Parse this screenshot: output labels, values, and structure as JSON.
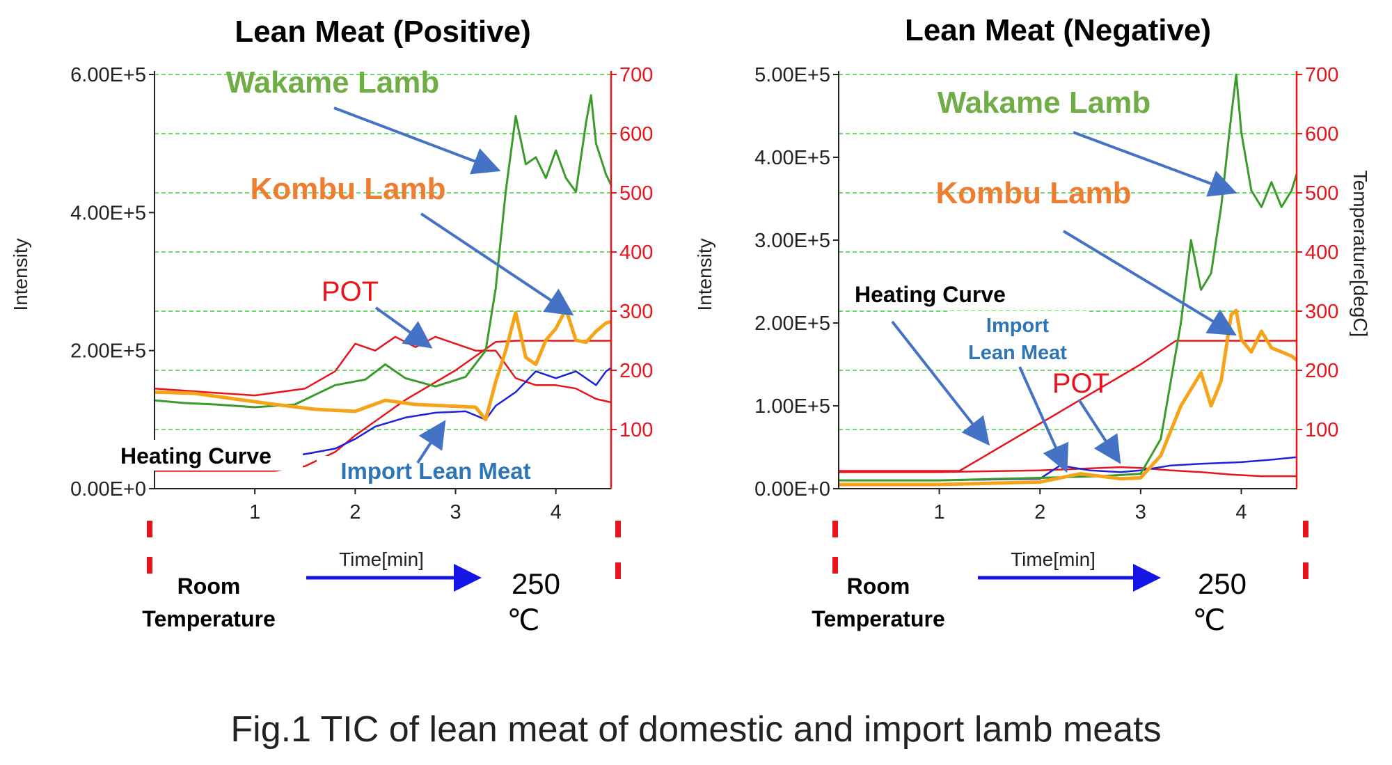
{
  "caption": "Fig.1 TIC of lean meat of domestic and import lamb meats",
  "colors": {
    "wakame": "#3a9b2a",
    "kombu": "#f5a41a",
    "import": "#1c22d8",
    "pot": "#e8141c",
    "heating": "#e8141c",
    "grid": "#3cd23c",
    "arrow": "#4472c4",
    "label_wakame": "#70ad47",
    "label_kombu": "#ed7d31",
    "label_import": "#2e75b6",
    "label_pot": "#e8141c",
    "time_arrow": "#1414e6"
  },
  "chart_data": [
    {
      "type": "line",
      "title": "Lean Meat (Positive)",
      "xlabel": "Time[min]",
      "ylabel": "Intensity",
      "y2label": "",
      "xlim": [
        0,
        4.55
      ],
      "ylim": [
        0,
        600000
      ],
      "y2lim": [
        0,
        700
      ],
      "x_ticks": [
        "1",
        "2",
        "3",
        "4"
      ],
      "y_ticks": [
        "0.00E+0",
        "2.00E+5",
        "4.00E+5",
        "6.00E+5"
      ],
      "y2_ticks": [
        "100",
        "200",
        "300",
        "400",
        "500",
        "600",
        "700"
      ],
      "grid": true,
      "labels": {
        "wakame": "Wakame Lamb",
        "kombu": "Kombu Lamb",
        "pot": "POT",
        "heating": "Heating Curve",
        "import": "Import Lean Meat"
      },
      "footer": {
        "room": [
          "Room",
          "Temperature"
        ],
        "end": [
          "250",
          "℃"
        ]
      },
      "series": [
        {
          "key": "wakame",
          "name": "Wakame Lamb",
          "axis": "left",
          "x": [
            0,
            0.3,
            0.6,
            1.0,
            1.4,
            1.8,
            2.1,
            2.3,
            2.5,
            2.8,
            3.1,
            3.3,
            3.4,
            3.5,
            3.6,
            3.7,
            3.8,
            3.9,
            4.0,
            4.1,
            4.2,
            4.3,
            4.35,
            4.4,
            4.5,
            4.55
          ],
          "y": [
            128000,
            124000,
            122000,
            118000,
            122000,
            150000,
            158000,
            180000,
            160000,
            148000,
            162000,
            200000,
            290000,
            430000,
            540000,
            470000,
            480000,
            450000,
            490000,
            450000,
            430000,
            530000,
            570000,
            500000,
            455000,
            440000
          ]
        },
        {
          "key": "kombu",
          "name": "Kombu Lamb",
          "axis": "left",
          "x": [
            0,
            0.4,
            0.8,
            1.2,
            1.6,
            2.0,
            2.3,
            2.6,
            2.9,
            3.2,
            3.3,
            3.4,
            3.5,
            3.6,
            3.7,
            3.8,
            3.9,
            4.0,
            4.1,
            4.2,
            4.3,
            4.4,
            4.5,
            4.55
          ],
          "y": [
            140000,
            138000,
            130000,
            122000,
            115000,
            112000,
            128000,
            122000,
            120000,
            118000,
            100000,
            155000,
            200000,
            255000,
            190000,
            180000,
            215000,
            232000,
            260000,
            215000,
            212000,
            228000,
            240000,
            242000
          ]
        },
        {
          "key": "import",
          "name": "Import Lean Meat",
          "axis": "left",
          "x": [
            0,
            0.6,
            1.0,
            1.5,
            1.8,
            2.0,
            2.2,
            2.5,
            2.8,
            3.1,
            3.3,
            3.4,
            3.6,
            3.8,
            4.0,
            4.2,
            4.4,
            4.5,
            4.55
          ],
          "y": [
            40000,
            42000,
            43000,
            50000,
            58000,
            72000,
            90000,
            103000,
            110000,
            112000,
            100000,
            120000,
            140000,
            170000,
            160000,
            170000,
            150000,
            170000,
            175000
          ]
        },
        {
          "key": "pot",
          "name": "POT",
          "axis": "left",
          "x": [
            0,
            0.5,
            1.0,
            1.5,
            1.8,
            2.0,
            2.2,
            2.4,
            2.6,
            2.8,
            3.0,
            3.2,
            3.4,
            3.6,
            3.8,
            4.0,
            4.2,
            4.4,
            4.55
          ],
          "y": [
            145000,
            140000,
            135000,
            145000,
            170000,
            210000,
            200000,
            220000,
            205000,
            220000,
            210000,
            200000,
            200000,
            160000,
            150000,
            150000,
            145000,
            130000,
            125000
          ]
        },
        {
          "key": "heating",
          "name": "Heating Curve",
          "axis": "right",
          "x": [
            0,
            1.2,
            1.5,
            1.8,
            2.0,
            2.5,
            3.0,
            3.4,
            3.6,
            4.0,
            4.55
          ],
          "y": [
            30,
            30,
            38,
            62,
            90,
            150,
            200,
            248,
            250,
            250,
            250
          ]
        }
      ]
    },
    {
      "type": "line",
      "title": "Lean Meat (Negative)",
      "xlabel": "Time[min]",
      "ylabel": "Intensity",
      "y2label": "Temperature[degC]",
      "xlim": [
        0,
        4.55
      ],
      "ylim": [
        0,
        500000
      ],
      "y2lim": [
        0,
        700
      ],
      "x_ticks": [
        "1",
        "2",
        "3",
        "4"
      ],
      "y_ticks": [
        "0.00E+0",
        "1.00E+5",
        "2.00E+5",
        "3.00E+5",
        "4.00E+5",
        "5.00E+5"
      ],
      "y2_ticks": [
        "100",
        "200",
        "300",
        "400",
        "500",
        "600",
        "700"
      ],
      "grid": true,
      "labels": {
        "wakame": "Wakame Lamb",
        "kombu": "Kombu Lamb",
        "heating": "Heating Curve",
        "import": [
          "Import",
          "Lean Meat"
        ],
        "pot": "POT"
      },
      "footer": {
        "room": [
          "Room",
          "Temperature"
        ],
        "end": [
          "250",
          "℃"
        ]
      },
      "series": [
        {
          "key": "wakame",
          "name": "Wakame Lamb",
          "axis": "left",
          "x": [
            0,
            1.0,
            2.0,
            2.6,
            3.0,
            3.2,
            3.4,
            3.5,
            3.6,
            3.7,
            3.8,
            3.9,
            3.95,
            4.0,
            4.1,
            4.2,
            4.3,
            4.4,
            4.5,
            4.55
          ],
          "y": [
            10000,
            10000,
            13000,
            15000,
            18000,
            60000,
            200000,
            300000,
            240000,
            260000,
            340000,
            450000,
            500000,
            430000,
            360000,
            340000,
            370000,
            340000,
            360000,
            380000
          ]
        },
        {
          "key": "kombu",
          "name": "Kombu Lamb",
          "axis": "left",
          "x": [
            0,
            1.0,
            2.0,
            2.4,
            2.8,
            3.0,
            3.2,
            3.4,
            3.5,
            3.6,
            3.7,
            3.8,
            3.9,
            3.95,
            4.0,
            4.1,
            4.2,
            4.3,
            4.4,
            4.5,
            4.55
          ],
          "y": [
            5000,
            5000,
            8000,
            18000,
            12000,
            13000,
            40000,
            100000,
            120000,
            140000,
            100000,
            130000,
            210000,
            215000,
            180000,
            165000,
            190000,
            170000,
            165000,
            160000,
            155000
          ]
        },
        {
          "key": "import",
          "name": "Import Lean Meat",
          "axis": "left",
          "x": [
            0,
            1.0,
            2.0,
            2.2,
            2.5,
            2.8,
            3.0,
            3.3,
            3.6,
            4.0,
            4.3,
            4.55
          ],
          "y": [
            10000,
            10000,
            12000,
            28000,
            22000,
            20000,
            22000,
            28000,
            30000,
            32000,
            35000,
            38000
          ]
        },
        {
          "key": "pot",
          "name": "POT",
          "axis": "left",
          "x": [
            0,
            1.0,
            2.0,
            2.4,
            2.8,
            3.0,
            3.3,
            3.6,
            3.9,
            4.2,
            4.55
          ],
          "y": [
            20000,
            20000,
            22000,
            24000,
            26000,
            25000,
            22000,
            20000,
            17000,
            15000,
            15000
          ]
        },
        {
          "key": "heating",
          "name": "Heating Curve",
          "axis": "right",
          "x": [
            0,
            1.2,
            1.45,
            1.6,
            2.0,
            2.5,
            3.0,
            3.35,
            3.6,
            4.0,
            4.55
          ],
          "y": [
            30,
            30,
            55,
            70,
            110,
            160,
            210,
            250,
            250,
            250,
            250
          ]
        }
      ]
    }
  ]
}
